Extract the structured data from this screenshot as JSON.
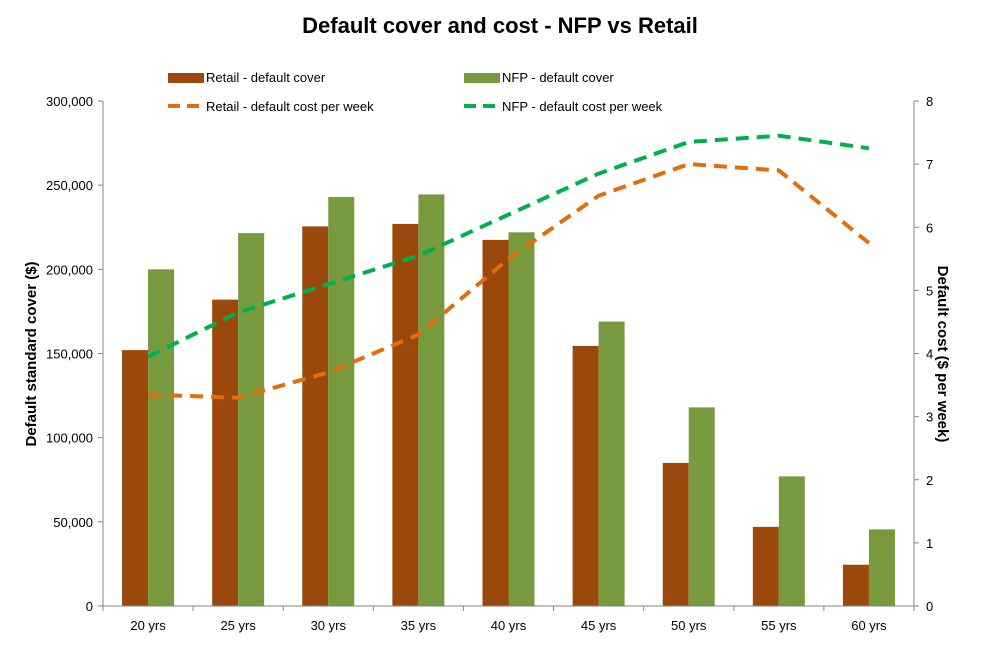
{
  "chart_data": {
    "type": "bar",
    "title": "Default cover and cost  - NFP vs Retail",
    "categories": [
      "20 yrs",
      "25 yrs",
      "30 yrs",
      "35 yrs",
      "40 yrs",
      "45 yrs",
      "50 yrs",
      "55 yrs",
      "60 yrs"
    ],
    "y_left": {
      "label": "Default  standard cover ($)",
      "range": [
        0,
        300000
      ],
      "ticks": [
        "0",
        "50,000",
        "100,000",
        "150,000",
        "200,000",
        "250,000",
        "300,000"
      ]
    },
    "y_right": {
      "label": "Default cost ($ per week)",
      "range": [
        0,
        8
      ],
      "ticks": [
        "0",
        "1",
        "2",
        "3",
        "4",
        "5",
        "6",
        "7",
        "8"
      ]
    },
    "grid": false,
    "legend_position": "top",
    "series": [
      {
        "name": "Retail - default cover",
        "kind": "bar",
        "axis": "left",
        "color": "#9A480C",
        "values": [
          152000,
          182000,
          225500,
          227000,
          217500,
          154500,
          85000,
          47000,
          24500
        ]
      },
      {
        "name": "NFP - default cover",
        "kind": "bar",
        "axis": "left",
        "color": "#779A3E",
        "values": [
          200000,
          221500,
          243000,
          244500,
          222000,
          169000,
          118000,
          77000,
          45500
        ]
      },
      {
        "name": "Retail - default cost per week",
        "kind": "line",
        "style": "dashed",
        "axis": "right",
        "color": "#E46C0A",
        "values": [
          3.35,
          3.3,
          3.7,
          4.3,
          5.5,
          6.5,
          7.0,
          6.9,
          5.75
        ]
      },
      {
        "name": "NFP - default cost per week",
        "kind": "line",
        "style": "dashed",
        "axis": "right",
        "color": "#00B050",
        "values": [
          3.95,
          4.65,
          5.1,
          5.55,
          6.2,
          6.85,
          7.35,
          7.45,
          7.25
        ]
      }
    ]
  }
}
